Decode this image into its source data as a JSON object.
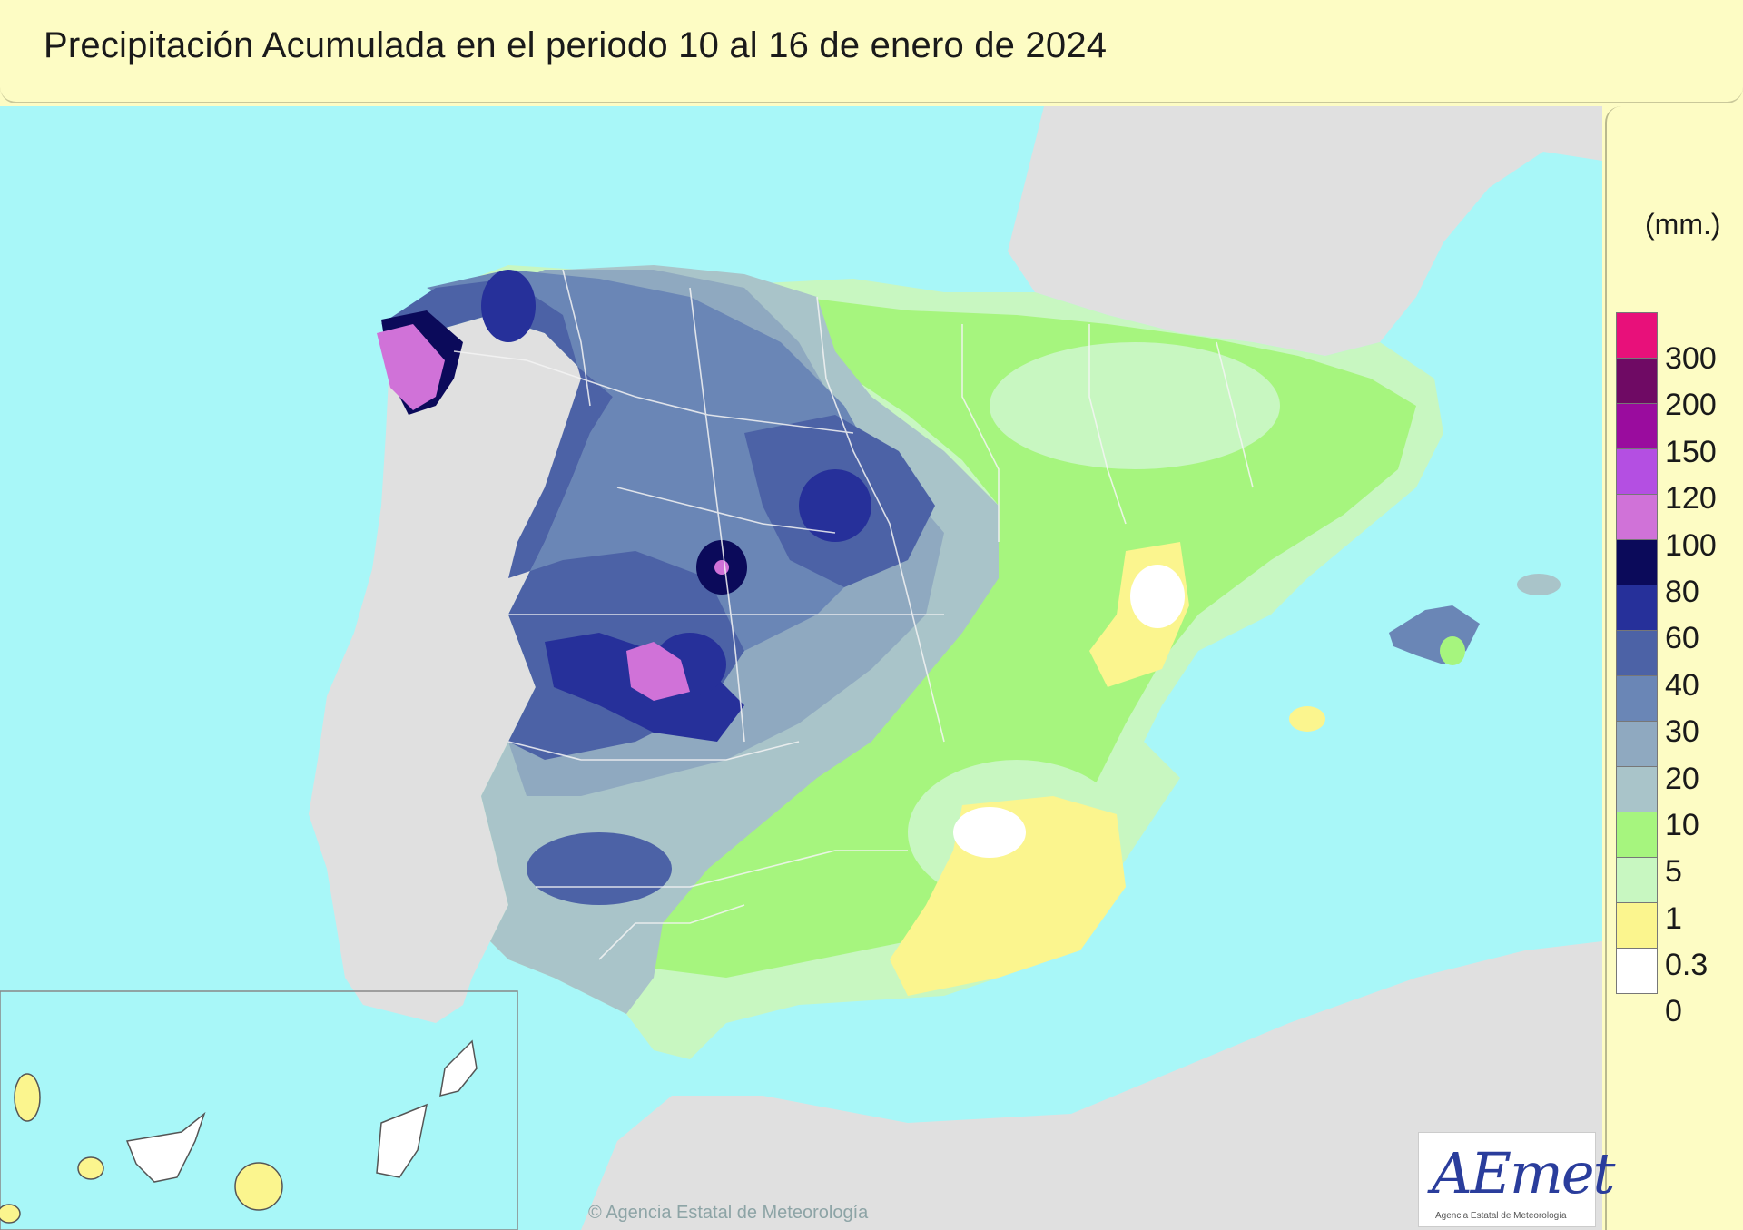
{
  "title": "Precipitación Acumulada en el periodo 10 al 16 de enero de 2024",
  "legend": {
    "unit": "(mm.)",
    "classes": [
      {
        "label": "300",
        "color": "#e8107a"
      },
      {
        "label": "200",
        "color": "#6f0a64"
      },
      {
        "label": "150",
        "color": "#9a0c9e"
      },
      {
        "label": "120",
        "color": "#b44fe2"
      },
      {
        "label": "100",
        "color": "#d072d8"
      },
      {
        "label": "80",
        "color": "#0b0a5a"
      },
      {
        "label": "60",
        "color": "#26309a"
      },
      {
        "label": "40",
        "color": "#4c62a6"
      },
      {
        "label": "30",
        "color": "#6a86b6"
      },
      {
        "label": "20",
        "color": "#8fa9c0"
      },
      {
        "label": "10",
        "color": "#a9c4c9"
      },
      {
        "label": "5",
        "color": "#a6f57e"
      },
      {
        "label": "1",
        "color": "#c8f7c1"
      },
      {
        "label": "0.3",
        "color": "#fbf58e"
      },
      {
        "label": "0",
        "color": "#ffffff"
      }
    ]
  },
  "logo": {
    "text": "AEmet",
    "subtitle": "Agencia Estatal de Meteorología"
  },
  "copyright": "© Agencia Estatal de Meteorología",
  "colors": {
    "sea": "#a8f7f8",
    "land_outside": "#e0e0e0",
    "background": "#fdfcc4"
  }
}
